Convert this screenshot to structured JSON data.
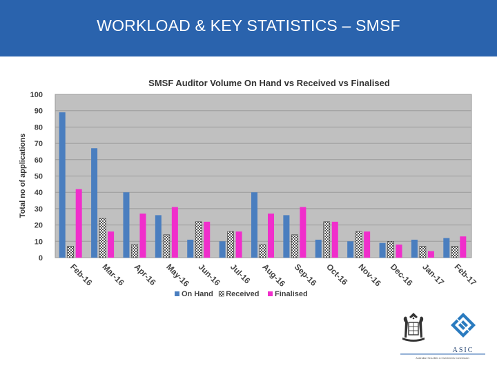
{
  "slide": {
    "title": "WORKLOAD & KEY STATISTICS – SMSF"
  },
  "logo": {
    "name": "ASIC",
    "subtitle": "Australian Securities & Investments Commission"
  },
  "colors": {
    "header": "#2a63ad",
    "on_hand": "#4a7ebf",
    "received": "#ffffff",
    "finalised": "#f02ecb",
    "plot_bg": "#c0c0c0"
  },
  "chart_data": {
    "type": "bar",
    "title": "SMSF Auditor Volume On Hand vs Received vs Finalised",
    "xlabel": "",
    "ylabel": "Total no of applications",
    "ylim": [
      0,
      100
    ],
    "yticks": [
      0,
      10,
      20,
      30,
      40,
      50,
      60,
      70,
      80,
      90,
      100
    ],
    "grid": true,
    "legend_position": "bottom",
    "categories": [
      "Feb-16",
      "Mar-16",
      "Apr-16",
      "May-16",
      "Jun-16",
      "Jul-16",
      "Aug-16",
      "Sep-16",
      "Oct-16",
      "Nov-16",
      "Dec-16",
      "Jan-17",
      "Feb-17"
    ],
    "series": [
      {
        "name": "On Hand",
        "color": "#4a7ebf",
        "values": [
          89,
          67,
          40,
          26,
          11,
          10,
          40,
          26,
          11,
          10,
          9,
          11,
          12
        ]
      },
      {
        "name": "Received",
        "color": "#ffffff",
        "pattern": "checker",
        "values": [
          7,
          24,
          8,
          14,
          22,
          16,
          8,
          14,
          22,
          16,
          10,
          7,
          7
        ]
      },
      {
        "name": "Finalised",
        "color": "#f02ecb",
        "values": [
          42,
          16,
          27,
          31,
          22,
          16,
          27,
          31,
          22,
          16,
          8,
          4,
          13
        ]
      }
    ]
  }
}
